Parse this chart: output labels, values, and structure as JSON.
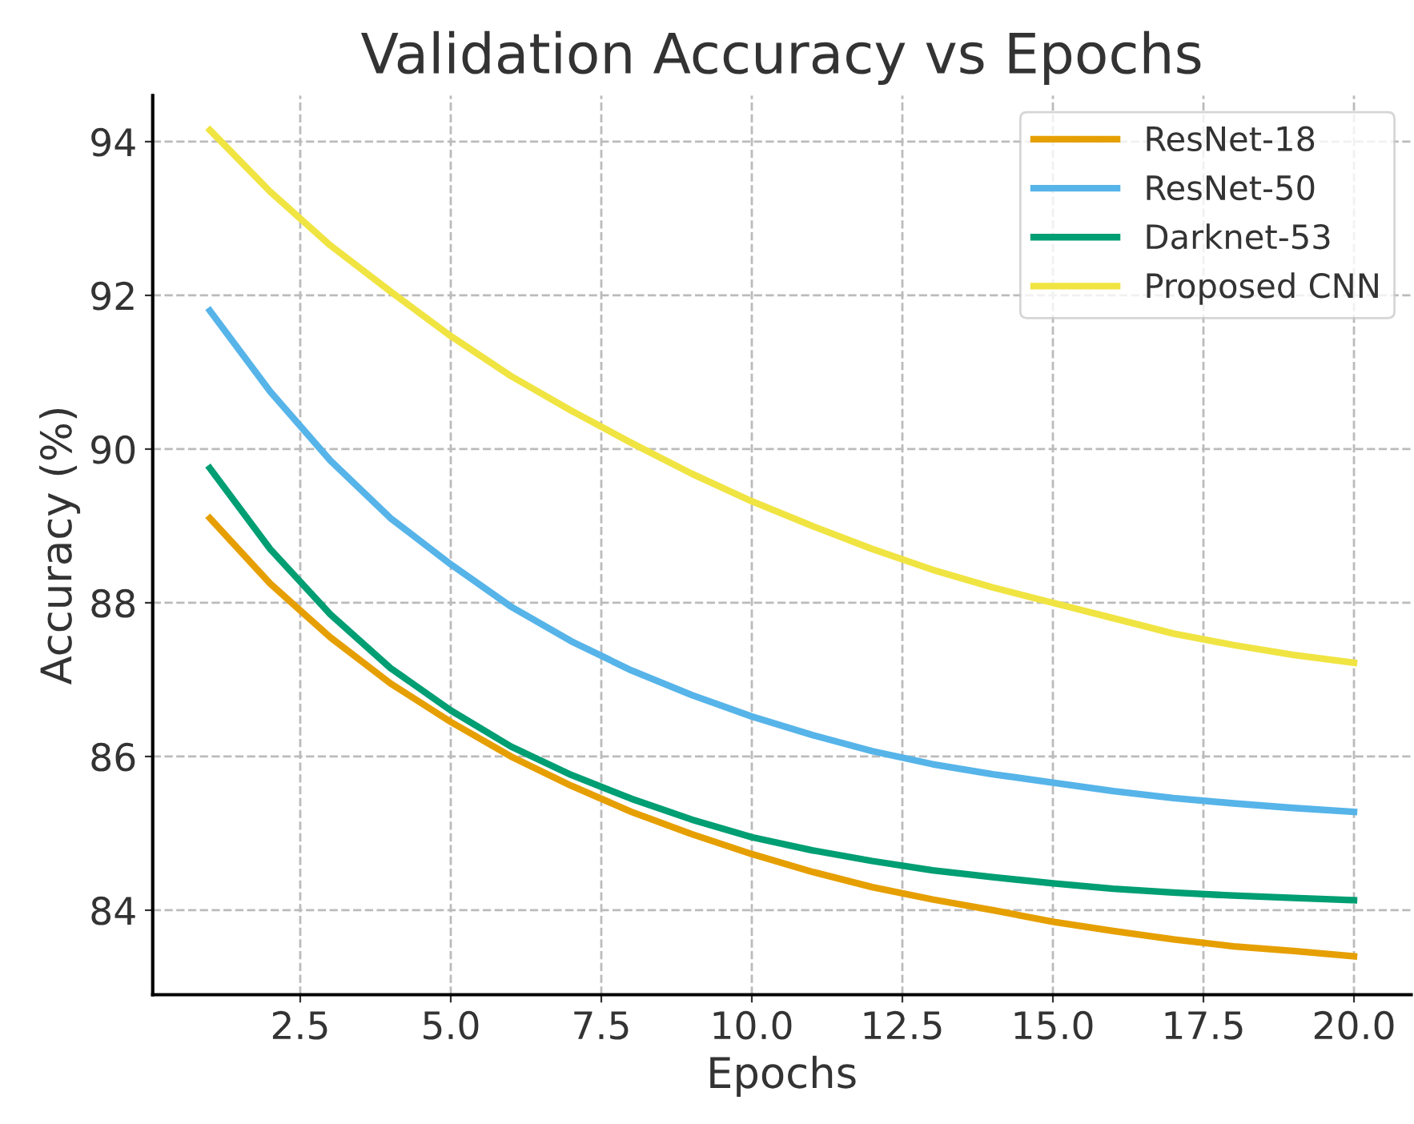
{
  "chart_data": {
    "type": "line",
    "title": "Validation Accuracy vs Epochs",
    "xlabel": "Epochs",
    "ylabel": "Accuracy (%)",
    "x": [
      1,
      2,
      3,
      4,
      5,
      6,
      7,
      8,
      9,
      10,
      11,
      12,
      13,
      14,
      15,
      16,
      17,
      18,
      19,
      20
    ],
    "series": [
      {
        "name": "ResNet-18",
        "color": "#e69f00",
        "values": [
          89.1,
          88.25,
          87.55,
          86.95,
          86.45,
          86.0,
          85.62,
          85.28,
          84.99,
          84.73,
          84.5,
          84.3,
          84.14,
          84.0,
          83.85,
          83.73,
          83.62,
          83.53,
          83.47,
          83.4
        ]
      },
      {
        "name": "ResNet-50",
        "color": "#56b4e9",
        "values": [
          91.8,
          90.75,
          89.85,
          89.1,
          88.5,
          87.95,
          87.5,
          87.12,
          86.8,
          86.52,
          86.28,
          86.07,
          85.9,
          85.77,
          85.66,
          85.55,
          85.46,
          85.39,
          85.33,
          85.28
        ]
      },
      {
        "name": "Darknet-53",
        "color": "#009e73",
        "values": [
          89.75,
          88.7,
          87.85,
          87.15,
          86.6,
          86.13,
          85.76,
          85.45,
          85.18,
          84.95,
          84.78,
          84.64,
          84.52,
          84.43,
          84.35,
          84.28,
          84.23,
          84.19,
          84.16,
          84.13
        ]
      },
      {
        "name": "Proposed CNN",
        "color": "#f0e442",
        "values": [
          94.15,
          93.35,
          92.65,
          92.05,
          91.47,
          90.95,
          90.5,
          90.08,
          89.68,
          89.32,
          89.0,
          88.7,
          88.43,
          88.2,
          88.0,
          87.8,
          87.6,
          87.45,
          87.32,
          87.22
        ]
      }
    ],
    "xlim": [
      0.05,
      20.95
    ],
    "ylim": [
      82.9,
      94.6
    ],
    "xticks": [
      {
        "value": 2.5,
        "label": "2.5"
      },
      {
        "value": 5,
        "label": "5.0"
      },
      {
        "value": 7.5,
        "label": "7.5"
      },
      {
        "value": 10,
        "label": "10.0"
      },
      {
        "value": 12.5,
        "label": "12.5"
      },
      {
        "value": 15,
        "label": "15.0"
      },
      {
        "value": 17.5,
        "label": "17.5"
      },
      {
        "value": 20,
        "label": "20.0"
      }
    ],
    "yticks": [
      84,
      86,
      88,
      90,
      92,
      94
    ],
    "grid": true,
    "legend": "top right",
    "marker": "none",
    "line_style": "solid"
  }
}
